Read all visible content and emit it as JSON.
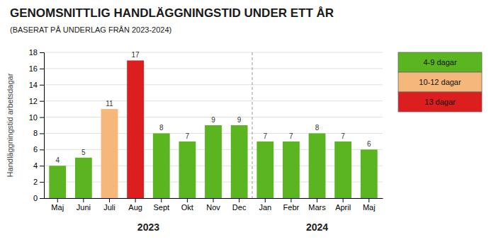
{
  "chart_data": {
    "type": "bar",
    "title": "GENOMSNITTLIG HANDLÄGGNINGSTID UNDER ETT ÅR",
    "subtitle": "(BASERAT PÅ UNDERLAG FRÅN 2023-2024)",
    "ylabel": "Handläggningstid arbetsdagar",
    "categories": [
      "Maj",
      "Juni",
      "Juli",
      "Aug",
      "Sept",
      "Okt",
      "Nov",
      "Dec",
      "Jan",
      "Febr",
      "Mars",
      "April",
      "Maj"
    ],
    "values": [
      4,
      5,
      11,
      17,
      8,
      7,
      9,
      9,
      7,
      7,
      8,
      7,
      6
    ],
    "colors": [
      "#5ab520",
      "#5ab520",
      "#f5b87a",
      "#dd1e1e",
      "#5ab520",
      "#5ab520",
      "#5ab520",
      "#5ab520",
      "#5ab520",
      "#5ab520",
      "#5ab520",
      "#5ab520",
      "#5ab520"
    ],
    "ylim": [
      0,
      18
    ],
    "yticks": [
      0,
      2,
      4,
      6,
      8,
      10,
      12,
      14,
      16,
      18
    ],
    "grid": true,
    "data_labels": true,
    "legend": "upper right",
    "legend_items": [
      {
        "label": "4-9 dagar",
        "color": "#5ab520"
      },
      {
        "label": "10-12 dagar",
        "color": "#f5b87a"
      },
      {
        "label": "13 dagar",
        "color": "#dd1e1e"
      }
    ],
    "annotations": [
      {
        "text": "2023",
        "start": 0,
        "end": 7
      },
      {
        "text": "2024",
        "start": 8,
        "end": 12
      }
    ]
  }
}
